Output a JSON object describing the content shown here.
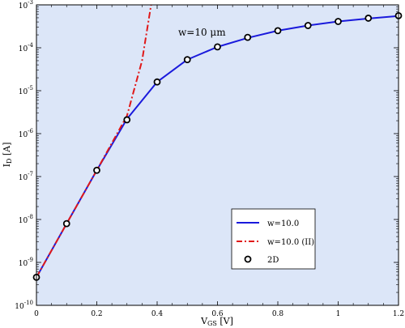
{
  "chart_data": {
    "type": "line",
    "xlabel_main": "V",
    "xlabel_sub": "GS",
    "xlabel_unit": " [V]",
    "ylabel_main": "I",
    "ylabel_sub": "D",
    "ylabel_unit": " [A]",
    "xlim": [
      0,
      1.2
    ],
    "ylim": [
      1e-10,
      0.001
    ],
    "yscale": "log",
    "x_ticks": [
      "0",
      "0.2",
      "0.4",
      "0.6",
      "0.8",
      "1",
      "1.2"
    ],
    "y_tick_exponents": [
      "-10",
      "-9",
      "-8",
      "-7",
      "-6",
      "-5",
      "-4",
      "-3"
    ],
    "y_tick_base": "10",
    "annotation": "w=10 μm",
    "background_color": "#dce6f8",
    "legend_position": "lower-right",
    "series": [
      {
        "name": "w=10.0",
        "style": "solid",
        "color": "#1a1adc",
        "x": [
          0,
          0.1,
          0.2,
          0.3,
          0.4,
          0.5,
          0.6,
          0.7,
          0.8,
          0.9,
          1.0,
          1.1,
          1.2
        ],
        "y": [
          4.5e-10,
          8e-09,
          1.4e-07,
          2.2e-06,
          1.6e-05,
          5.3e-05,
          0.000105,
          0.00017,
          0.00025,
          0.00033,
          0.00041,
          0.00048,
          0.00055
        ]
      },
      {
        "name": "w=10.0 (II)",
        "style": "dashdot",
        "color": "#e01818",
        "x": [
          0,
          0.1,
          0.2,
          0.3,
          0.35,
          0.38
        ],
        "y": [
          4.5e-10,
          8e-09,
          1.4e-07,
          2.6e-06,
          5e-05,
          0.001
        ]
      },
      {
        "name": "2D",
        "style": "markers",
        "color": "#000000",
        "x": [
          0,
          0.1,
          0.2,
          0.3,
          0.4,
          0.5,
          0.6,
          0.7,
          0.8,
          0.9,
          1.0,
          1.1,
          1.2
        ],
        "y": [
          4.5e-10,
          8e-09,
          1.4e-07,
          2.1e-06,
          1.6e-05,
          5.3e-05,
          0.000105,
          0.000175,
          0.00025,
          0.00033,
          0.00041,
          0.00049,
          0.00056
        ]
      }
    ]
  }
}
